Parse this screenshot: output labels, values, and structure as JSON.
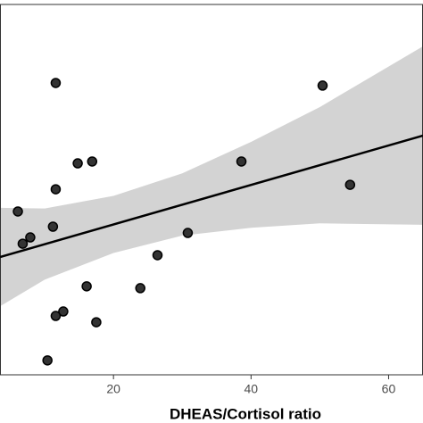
{
  "chart_data": {
    "type": "scatter",
    "x_label": "DHEAS/Cortisol ratio",
    "x": [
      11.6,
      50.4,
      14.8,
      16.9,
      38.6,
      11.6,
      54.4,
      6.1,
      11.2,
      7.9,
      6.8,
      30.8,
      26.4,
      16.1,
      23.9,
      12.7,
      11.6,
      17.5,
      10.4
    ],
    "y": [
      78.8,
      78.1,
      57.1,
      57.6,
      57.6,
      50.1,
      51.3,
      44.1,
      40.0,
      37.1,
      35.4,
      38.3,
      32.3,
      23.9,
      23.4,
      17.1,
      15.9,
      14.2,
      3.9
    ],
    "color": "#333333",
    "fit": {
      "x": [
        3.5,
        65
      ],
      "y": [
        31.8,
        64.6
      ],
      "color": "#000000"
    },
    "band": {
      "x": [
        3.5,
        10,
        20,
        30,
        40,
        50,
        65
      ],
      "lower": [
        18.5,
        25.7,
        32.9,
        37.6,
        39.7,
        40.9,
        40.5
      ],
      "upper": [
        45.1,
        44.9,
        48.3,
        54.4,
        62.9,
        72.3,
        88.7
      ],
      "color": "#d3d3d3"
    },
    "xlim": [
      3.5,
      65
    ],
    "ylim": [
      0,
      100
    ],
    "xticks": [
      20,
      40,
      60
    ]
  }
}
